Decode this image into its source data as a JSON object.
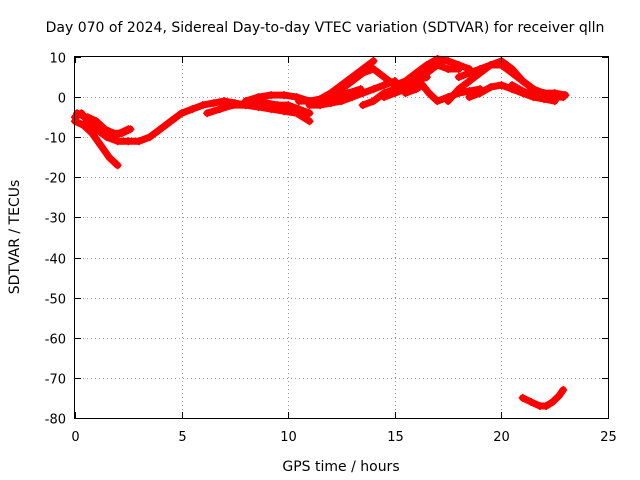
{
  "chart_data": {
    "type": "scatter",
    "title": "Day 070 of 2024, Sidereal Day-to-day VTEC variation (SDTVAR) for receiver qlln",
    "xlabel": "GPS time / hours",
    "ylabel": "SDTVAR / TECUs",
    "xlim": [
      0,
      25
    ],
    "ylim": [
      -80,
      10
    ],
    "xticks": [
      0,
      5,
      10,
      15,
      20,
      25
    ],
    "yticks": [
      10,
      0,
      -10,
      -20,
      -30,
      -40,
      -50,
      -60,
      -70,
      -80
    ],
    "grid": true,
    "marker_color": "#ff0000",
    "series": [
      {
        "name": "track-main",
        "x": [
          0.0,
          0.3,
          0.6,
          1.0,
          1.5,
          2.0,
          2.5,
          3.0,
          3.5,
          4.0,
          4.5,
          5.0,
          5.5,
          6.0,
          6.5,
          7.0,
          7.5,
          8.0,
          8.5,
          9.0,
          9.5,
          10.0,
          10.5,
          11.0
        ],
        "y": [
          -5,
          -4,
          -6,
          -8,
          -10,
          -11,
          -11,
          -11,
          -10,
          -8,
          -6,
          -4,
          -3,
          -2,
          -1.5,
          -1,
          -1.5,
          -2,
          -1,
          -1.5,
          -2,
          -2,
          -3,
          -4
        ]
      },
      {
        "name": "track-early-low",
        "x": [
          0.0,
          0.4,
          0.8,
          1.2,
          1.6,
          2.0
        ],
        "y": [
          -6,
          -7,
          -9,
          -12,
          -15,
          -17
        ]
      },
      {
        "name": "track-early-a",
        "x": [
          0.1,
          0.5,
          0.9,
          1.3,
          1.7,
          2.1,
          2.5
        ],
        "y": [
          -4,
          -5,
          -7,
          -9,
          -10,
          -9,
          -8
        ]
      },
      {
        "name": "track-early-b",
        "x": [
          0.6,
          1.0,
          1.4,
          1.8,
          2.2,
          2.6
        ],
        "y": [
          -5,
          -6,
          -8,
          -9,
          -9,
          -8
        ]
      },
      {
        "name": "track-day-a",
        "x": [
          6.2,
          6.8,
          7.4,
          8.0,
          8.6,
          9.2,
          9.8,
          10.4,
          11.0
        ],
        "y": [
          -4,
          -3,
          -2,
          -2,
          -2.5,
          -3,
          -3.5,
          -4,
          -6
        ]
      },
      {
        "name": "track-day-b",
        "x": [
          8.0,
          8.6,
          9.2,
          9.8,
          10.4,
          11.0,
          11.6,
          12.2,
          12.8,
          13.4
        ],
        "y": [
          -1,
          0,
          0.5,
          0.5,
          0,
          -1,
          -1,
          0,
          1,
          2
        ]
      },
      {
        "name": "track-rise-a",
        "x": [
          10.5,
          11.0,
          11.5,
          12.0,
          12.5,
          13.0,
          13.5,
          14.0
        ],
        "y": [
          -1,
          -1,
          -0.5,
          1,
          3,
          5,
          7,
          9
        ]
      },
      {
        "name": "track-rise-b",
        "x": [
          11.0,
          11.5,
          12.0,
          12.5,
          13.0,
          13.5,
          14.0,
          14.5,
          15.0
        ],
        "y": [
          -2,
          -2,
          -1.5,
          -1,
          0,
          1,
          2,
          3,
          4
        ]
      },
      {
        "name": "track-rise-c",
        "x": [
          12.0,
          12.5,
          13.0,
          13.5,
          14.0,
          14.5,
          15.0
        ],
        "y": [
          0,
          2,
          4,
          6,
          7,
          5,
          3
        ]
      },
      {
        "name": "track-mid-a",
        "x": [
          13.5,
          14.0,
          14.5,
          15.0,
          15.5,
          16.0,
          16.5
        ],
        "y": [
          -2,
          -1,
          1,
          2,
          3,
          4,
          5
        ]
      },
      {
        "name": "track-mid-b",
        "x": [
          14.5,
          15.0,
          15.5,
          16.0,
          16.5,
          17.0,
          17.5,
          18.0
        ],
        "y": [
          0,
          1,
          2,
          4,
          6,
          8,
          7,
          7
        ]
      },
      {
        "name": "track-mid-c",
        "x": [
          15.0,
          15.5,
          16.0,
          16.5,
          17.0,
          17.5,
          18.0,
          18.5
        ],
        "y": [
          3,
          4,
          6,
          8,
          9.5,
          9,
          8,
          7
        ]
      },
      {
        "name": "track-dip",
        "x": [
          15.5,
          16.0,
          16.3,
          16.6,
          17.0,
          17.5,
          18.0,
          18.5,
          19.0
        ],
        "y": [
          1,
          2,
          3,
          1,
          -1,
          0,
          1,
          1.5,
          2
        ]
      },
      {
        "name": "track-late-a",
        "x": [
          17.5,
          18.0,
          18.5,
          19.0,
          19.5,
          20.0,
          20.5,
          21.0,
          21.5,
          22.0,
          22.5,
          23.0
        ],
        "y": [
          -1,
          2,
          4,
          6,
          8,
          8,
          6,
          4,
          2,
          1,
          1,
          0.5
        ]
      },
      {
        "name": "track-late-b",
        "x": [
          18.0,
          18.5,
          19.0,
          19.5,
          20.0,
          20.5,
          21.0,
          21.5,
          22.0
        ],
        "y": [
          5,
          6,
          7,
          8,
          9,
          7,
          4,
          2,
          0
        ]
      },
      {
        "name": "track-late-c",
        "x": [
          18.5,
          19.0,
          19.5,
          20.0,
          20.5,
          21.0,
          21.5,
          22.0,
          22.5
        ],
        "y": [
          0,
          1,
          2.5,
          3,
          2,
          1,
          0,
          -0.5,
          -1
        ]
      },
      {
        "name": "track-late-d",
        "x": [
          20.5,
          21.0,
          21.5,
          22.0,
          22.5,
          22.9
        ],
        "y": [
          3,
          1.5,
          0.5,
          0,
          0,
          0
        ]
      },
      {
        "name": "track-outlier",
        "x": [
          21.0,
          21.4,
          21.8,
          22.1,
          22.4,
          22.7,
          22.9
        ],
        "y": [
          -75,
          -76,
          -77,
          -77,
          -76,
          -74.5,
          -73
        ]
      }
    ]
  }
}
